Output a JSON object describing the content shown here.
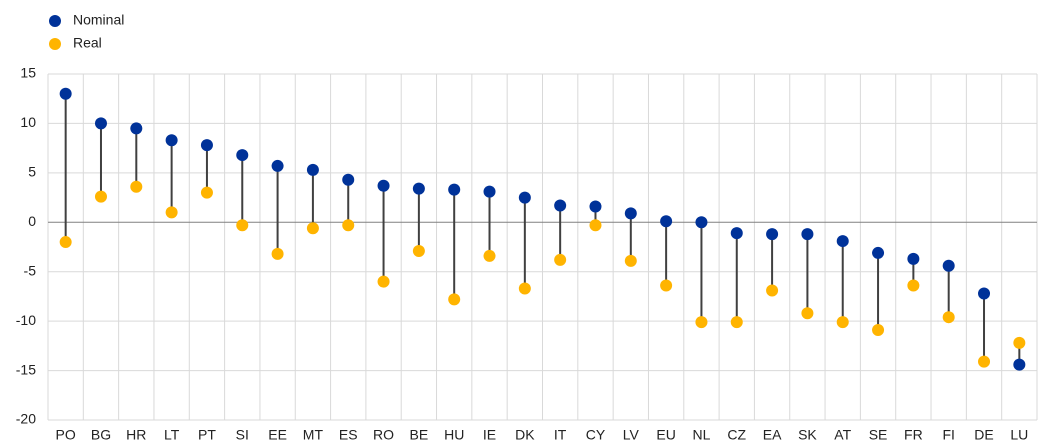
{
  "chart_data": {
    "type": "dumbbell",
    "categories": [
      "PO",
      "BG",
      "HR",
      "LT",
      "PT",
      "SI",
      "EE",
      "MT",
      "ES",
      "RO",
      "BE",
      "HU",
      "IE",
      "DK",
      "IT",
      "CY",
      "LV",
      "EU",
      "NL",
      "CZ",
      "EA",
      "SK",
      "AT",
      "SE",
      "FR",
      "FI",
      "DE",
      "LU"
    ],
    "series": [
      {
        "name": "Nominal",
        "color": "#003299",
        "values": [
          13,
          10,
          9.5,
          8.3,
          7.8,
          6.8,
          5.7,
          5.3,
          4.3,
          3.7,
          3.4,
          3.3,
          3.1,
          2.5,
          1.7,
          1.6,
          0.9,
          0.1,
          0,
          -1.1,
          -1.2,
          -1.2,
          -1.9,
          -3.1,
          -3.7,
          -4.4,
          -7.2,
          -14.4
        ]
      },
      {
        "name": "Real",
        "color": "#ffb400",
        "values": [
          -2,
          2.6,
          3.6,
          1.0,
          3.0,
          -0.3,
          -3.2,
          -0.6,
          -0.3,
          -6.0,
          -2.9,
          -7.8,
          -3.4,
          -6.7,
          -3.8,
          -0.3,
          -3.9,
          -6.4,
          -10.1,
          -10.1,
          -6.9,
          -9.2,
          -10.1,
          -10.9,
          -6.4,
          -9.6,
          -14.1,
          -12.2
        ]
      }
    ],
    "ylim": [
      -20,
      15
    ],
    "yticks": [
      -20,
      -15,
      -10,
      -5,
      0,
      5,
      10,
      15
    ],
    "grid": true,
    "legend": "top-left"
  }
}
